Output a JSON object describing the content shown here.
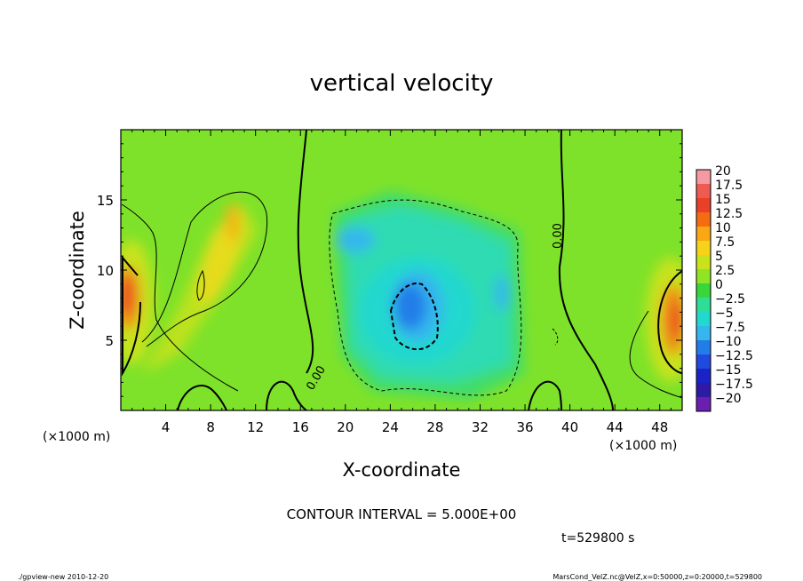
{
  "chart_data": {
    "type": "heatmap",
    "title": "vertical velocity",
    "xlabel": "X-coordinate",
    "ylabel": "Z-coordinate",
    "x_unit_left": "(×1000 m)",
    "x_unit_right": "(×1000 m)",
    "xlim": [
      0,
      50
    ],
    "ylim": [
      0,
      20
    ],
    "xticks": [
      4,
      8,
      12,
      16,
      20,
      24,
      28,
      32,
      36,
      40,
      44,
      48
    ],
    "yticks": [
      5,
      10,
      15
    ],
    "colorbar": {
      "labels": [
        "20",
        "17.5",
        "15",
        "12.5",
        "10",
        "7.5",
        "5",
        "2.5",
        "0",
        "−2.5",
        "−5",
        "−7.5",
        "−10",
        "−12.5",
        "−15",
        "−17.5",
        "−20"
      ],
      "colors": [
        "#f59aa2",
        "#ef5a52",
        "#ea3f28",
        "#f36c12",
        "#f9a713",
        "#f6d21a",
        "#c8e31c",
        "#8fe524",
        "#37d63a",
        "#2fdd95",
        "#22d9d0",
        "#35b6ee",
        "#237de8",
        "#2049e0",
        "#1a23c8",
        "#2f1aa8",
        "#6a1fb1"
      ]
    },
    "contour_labels": [
      "0.00",
      "0.00"
    ],
    "contour_interval_text": "CONTOUR INTERVAL = 5.000E+00",
    "time_text": "t=529800 s"
  },
  "footer": {
    "left": "./gpview-new  2010-12-20",
    "right": "MarsCond_VelZ.nc@VelZ,x=0:50000,z=0:20000,t=529800"
  }
}
